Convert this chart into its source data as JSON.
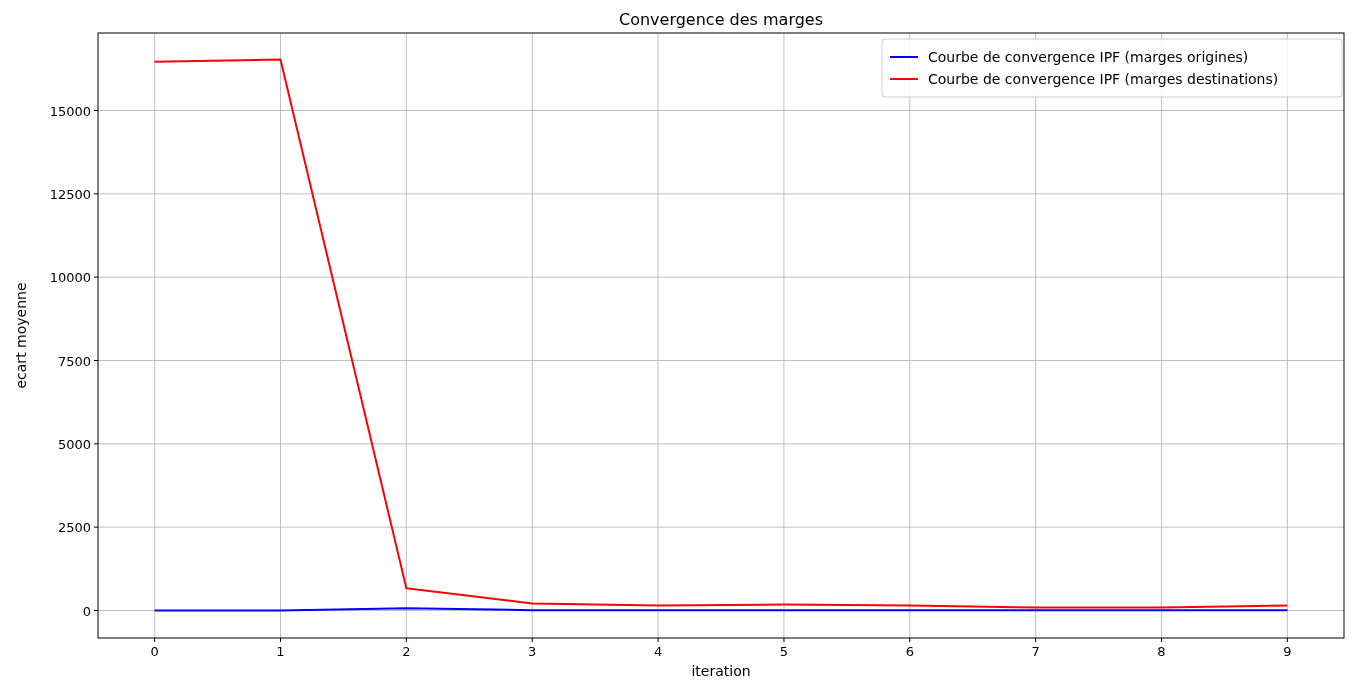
{
  "chart_data": {
    "type": "line",
    "title": "Convergence des marges",
    "xlabel": "iteration",
    "ylabel": "ecart moyenne",
    "x": [
      0,
      1,
      2,
      3,
      4,
      5,
      6,
      7,
      8,
      9
    ],
    "series": [
      {
        "name": "Courbe de convergence IPF (marges origines)",
        "color": "#0000ff",
        "values": [
          0,
          0,
          70,
          10,
          10,
          10,
          10,
          10,
          10,
          10
        ]
      },
      {
        "name": "Courbe de convergence IPF (marges destinations)",
        "color": "#ff0000",
        "values": [
          16460,
          16530,
          670,
          210,
          150,
          180,
          150,
          90,
          90,
          150
        ]
      }
    ],
    "xlim": [
      -0.45,
      9.45
    ],
    "ylim": [
      -825,
      17325
    ],
    "xticks": [
      0,
      1,
      2,
      3,
      4,
      5,
      6,
      7,
      8,
      9
    ],
    "yticks": [
      0,
      2500,
      5000,
      7500,
      10000,
      12500,
      15000
    ],
    "grid": true,
    "legend": "top right",
    "marker": "none",
    "line_style": "solid"
  }
}
